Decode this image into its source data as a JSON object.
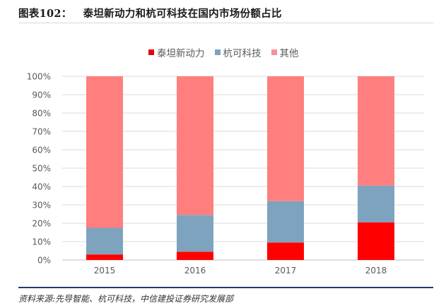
{
  "header": {
    "figure_label": "图表102：",
    "title": "泰坦新动力和杭可科技在国内市场份额占比"
  },
  "footer": {
    "source": "资料来源:先导智能、杭可科技，中信建投证券研究发展部"
  },
  "chart_data": {
    "type": "bar",
    "stacked": true,
    "title": "泰坦新动力和杭可科技在国内市场份额占比",
    "xlabel": "",
    "ylabel": "",
    "categories": [
      "2015",
      "2016",
      "2017",
      "2018"
    ],
    "series": [
      {
        "name": "泰坦新动力",
        "color": "#ff0000",
        "values": [
          3,
          4.5,
          9.5,
          20.5
        ]
      },
      {
        "name": "杭可科技",
        "color": "#7ea3bf",
        "values": [
          14.5,
          20,
          22.5,
          20
        ]
      },
      {
        "name": "其他",
        "color": "#ff7f7f",
        "values": [
          82.5,
          75.5,
          68,
          59.5
        ]
      }
    ],
    "ylim": [
      0,
      100
    ],
    "yticks": [
      "0%",
      "10%",
      "20%",
      "30%",
      "40%",
      "50%",
      "60%",
      "70%",
      "80%",
      "90%",
      "100%"
    ],
    "grid": true,
    "legend_position": "top-center"
  }
}
